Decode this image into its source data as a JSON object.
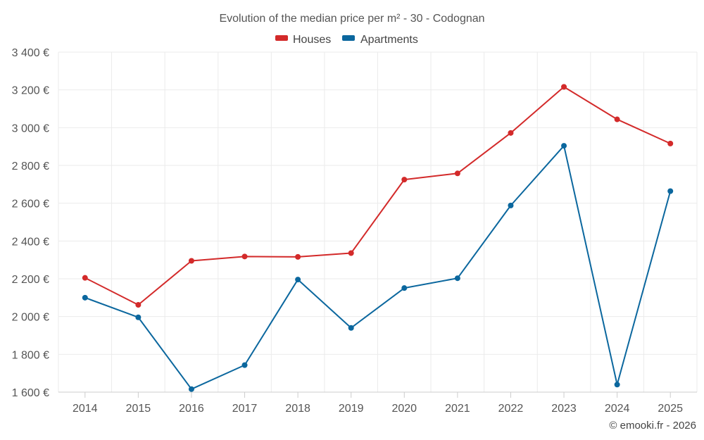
{
  "chart_data": {
    "type": "line",
    "title": "Evolution of the median price per m² - 30 - Codognan",
    "xlabel": "",
    "ylabel": "",
    "categories": [
      "2014",
      "2015",
      "2016",
      "2017",
      "2018",
      "2019",
      "2020",
      "2021",
      "2022",
      "2023",
      "2024",
      "2025"
    ],
    "ylim": [
      1600,
      3400
    ],
    "yticks": [
      1600,
      1800,
      2000,
      2200,
      2400,
      2600,
      2800,
      3000,
      3200,
      3400
    ],
    "ytick_labels": [
      "1 600 €",
      "1 800 €",
      "2 000 €",
      "2 200 €",
      "2 400 €",
      "2 600 €",
      "2 800 €",
      "3 000 €",
      "3 200 €",
      "3 400 €"
    ],
    "grid": true,
    "legend_position": "top-center",
    "series": [
      {
        "name": "Houses",
        "color": "#d32a2a",
        "values": [
          2205,
          2062,
          2295,
          2318,
          2316,
          2336,
          2725,
          2758,
          2972,
          3216,
          3044,
          2916
        ]
      },
      {
        "name": "Apartments",
        "color": "#0b679e",
        "values": [
          2100,
          1996,
          1616,
          1743,
          2196,
          1940,
          2151,
          2203,
          2588,
          2904,
          1640,
          2664
        ]
      }
    ]
  },
  "credit": "© emooki.fr - 2026"
}
